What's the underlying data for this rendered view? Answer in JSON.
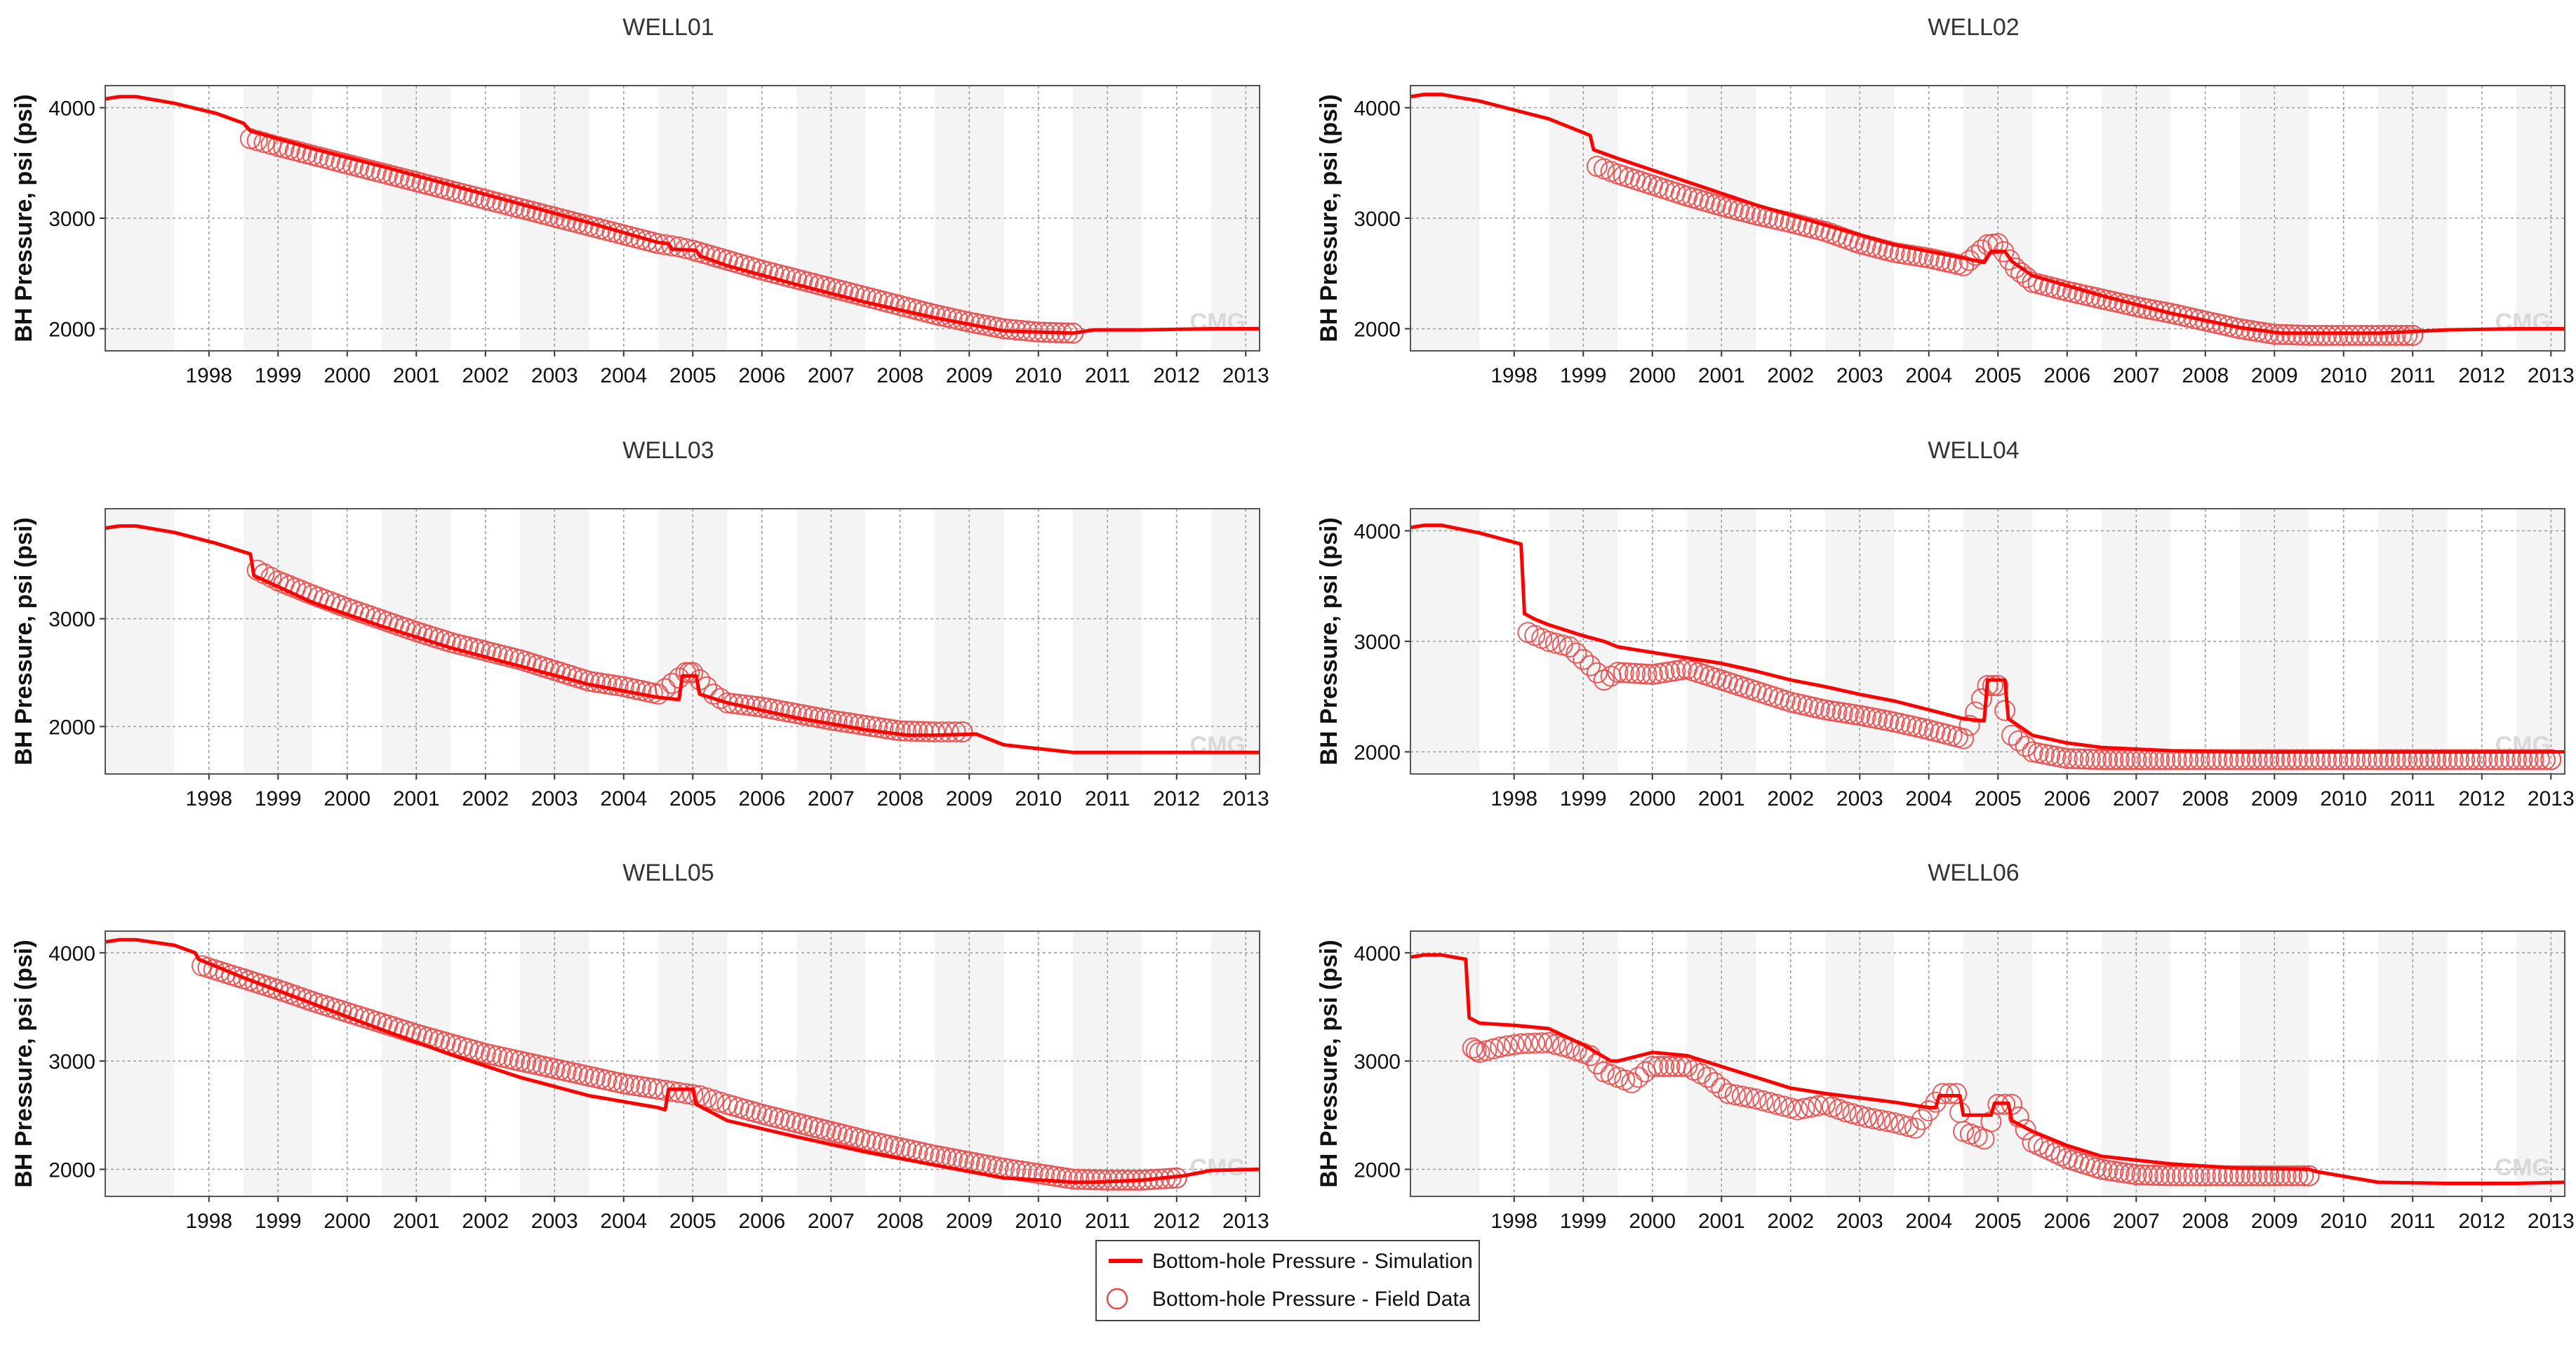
{
  "colors": {
    "simulation": "#ff0000",
    "field": "#e84a4a",
    "band": "#f4f4f4",
    "grid": "#9a9a9a",
    "frame": "#555555"
  },
  "legend": {
    "simulation_label": "Bottom-hole Pressure - Simulation",
    "field_label": "Bottom-hole Pressure - Field Data"
  },
  "watermark": "CMG",
  "chart_data": [
    {
      "type": "line",
      "title": "WELL01",
      "ylabel": "BH Pressure, psi (psi)",
      "xlim": [
        1997.0,
        2013.7
      ],
      "ylim": [
        1800,
        4200
      ],
      "x_ticks": [
        "1998",
        "1999",
        "2000",
        "2001",
        "2002",
        "2003",
        "2004",
        "2005",
        "2006",
        "2007",
        "2008",
        "2009",
        "2010",
        "2011",
        "2012",
        "2013"
      ],
      "y_ticks": [
        2000,
        3000,
        4000
      ],
      "series": [
        {
          "name": "Bottom-hole Pressure - Simulation",
          "x": [
            1997.0,
            1997.2,
            1997.45,
            1998.0,
            1998.6,
            1999.0,
            1999.1,
            2000.0,
            2001.0,
            2002.0,
            2003.0,
            2004.0,
            2005.0,
            2005.15,
            2005.2,
            2005.55,
            2005.6,
            2006.0,
            2007.0,
            2008.0,
            2009.0,
            2010.0,
            2011.0,
            2011.3,
            2012.0,
            2013.0,
            2013.7
          ],
          "y": [
            4080,
            4100,
            4100,
            4040,
            3950,
            3860,
            3790,
            3630,
            3470,
            3300,
            3130,
            2960,
            2780,
            2770,
            2720,
            2710,
            2660,
            2570,
            2400,
            2240,
            2100,
            1980,
            1960,
            1990,
            1990,
            2000,
            2000
          ]
        },
        {
          "name": "Bottom-hole Pressure - Field Data",
          "x": [
            1999.1,
            1999.5,
            2000.0,
            2000.5,
            2001.0,
            2001.5,
            2002.0,
            2002.5,
            2003.0,
            2003.5,
            2004.0,
            2004.5,
            2005.0,
            2005.3,
            2005.5,
            2006.0,
            2006.5,
            2007.0,
            2007.5,
            2008.0,
            2008.5,
            2009.0,
            2009.5,
            2010.0,
            2010.5,
            2011.0
          ],
          "y": [
            3720,
            3650,
            3570,
            3490,
            3410,
            3330,
            3250,
            3170,
            3090,
            3010,
            2930,
            2850,
            2770,
            2740,
            2710,
            2620,
            2530,
            2450,
            2370,
            2290,
            2210,
            2130,
            2060,
            2000,
            1970,
            1960
          ]
        }
      ]
    },
    {
      "type": "line",
      "title": "WELL02",
      "ylabel": "BH Pressure, psi (psi)",
      "xlim": [
        1997.0,
        2013.7
      ],
      "ylim": [
        1800,
        4200
      ],
      "x_ticks": [
        "1998",
        "1999",
        "2000",
        "2001",
        "2002",
        "2003",
        "2004",
        "2005",
        "2006",
        "2007",
        "2008",
        "2009",
        "2010",
        "2011",
        "2012",
        "2013"
      ],
      "y_ticks": [
        2000,
        3000,
        4000
      ],
      "series": [
        {
          "name": "Bottom-hole Pressure - Simulation",
          "x": [
            1997.0,
            1997.2,
            1997.45,
            1998.0,
            1999.0,
            1999.6,
            1999.65,
            2000.0,
            2001.0,
            2002.0,
            2003.0,
            2004.0,
            2005.0,
            2005.3,
            2005.4,
            2005.6,
            2005.7,
            2006.0,
            2007.0,
            2008.0,
            2009.0,
            2009.6,
            2010.0,
            2011.0,
            2012.0,
            2013.0,
            2013.7
          ],
          "y": [
            4100,
            4120,
            4120,
            4060,
            3900,
            3750,
            3620,
            3540,
            3330,
            3120,
            2940,
            2760,
            2640,
            2600,
            2700,
            2700,
            2610,
            2480,
            2300,
            2140,
            2010,
            1960,
            1960,
            1960,
            1990,
            2000,
            2000
          ]
        },
        {
          "name": "Bottom-hole Pressure - Field Data",
          "x": [
            1999.7,
            2000.0,
            2000.5,
            2001.0,
            2001.5,
            2002.0,
            2002.5,
            2003.0,
            2003.5,
            2004.0,
            2004.5,
            2005.0,
            2005.35,
            2005.5,
            2005.75,
            2006.0,
            2006.5,
            2007.0,
            2007.5,
            2008.0,
            2008.5,
            2009.0,
            2009.5,
            2010.0,
            2010.5,
            2011.0,
            2011.5
          ],
          "y": [
            3470,
            3400,
            3300,
            3200,
            3110,
            3030,
            2960,
            2880,
            2770,
            2690,
            2640,
            2570,
            2760,
            2770,
            2550,
            2420,
            2340,
            2270,
            2200,
            2140,
            2070,
            2000,
            1950,
            1940,
            1940,
            1940,
            1940
          ]
        }
      ]
    },
    {
      "type": "line",
      "title": "WELL03",
      "ylabel": "BH Pressure, psi (psi)",
      "xlim": [
        1997.0,
        2013.7
      ],
      "ylim": [
        1560,
        4020
      ],
      "x_ticks": [
        "1998",
        "1999",
        "2000",
        "2001",
        "2002",
        "2003",
        "2004",
        "2005",
        "2006",
        "2007",
        "2008",
        "2009",
        "2010",
        "2011",
        "2012",
        "2013"
      ],
      "y_ticks": [
        2000,
        3000
      ],
      "series": [
        {
          "name": "Bottom-hole Pressure - Simulation",
          "x": [
            1997.0,
            1997.2,
            1997.45,
            1998.0,
            1998.6,
            1999.1,
            1999.15,
            2000.0,
            2001.0,
            2002.0,
            2003.0,
            2004.0,
            2005.0,
            2005.3,
            2005.35,
            2005.55,
            2005.6,
            2006.0,
            2007.0,
            2008.0,
            2008.6,
            2009.0,
            2009.6,
            2010.0,
            2011.0,
            2012.0,
            2013.0,
            2013.7
          ],
          "y": [
            3840,
            3860,
            3860,
            3800,
            3700,
            3600,
            3400,
            3150,
            2930,
            2730,
            2560,
            2390,
            2270,
            2250,
            2470,
            2470,
            2300,
            2220,
            2080,
            1970,
            1920,
            1920,
            1930,
            1830,
            1760,
            1760,
            1760,
            1760
          ]
        },
        {
          "name": "Bottom-hole Pressure - Field Data",
          "x": [
            1999.2,
            1999.5,
            2000.0,
            2000.5,
            2001.0,
            2001.5,
            2002.0,
            2002.5,
            2003.0,
            2003.5,
            2004.0,
            2004.5,
            2005.0,
            2005.4,
            2005.5,
            2005.8,
            2006.0,
            2006.5,
            2007.0,
            2007.5,
            2008.0,
            2008.5,
            2009.0,
            2009.4
          ],
          "y": [
            3450,
            3350,
            3220,
            3100,
            2990,
            2880,
            2780,
            2700,
            2620,
            2520,
            2420,
            2370,
            2300,
            2500,
            2500,
            2300,
            2220,
            2180,
            2120,
            2060,
            2010,
            1960,
            1950,
            1950
          ]
        }
      ]
    },
    {
      "type": "line",
      "title": "WELL04",
      "ylabel": "BH Pressure, psi (psi)",
      "xlim": [
        1997.0,
        2013.7
      ],
      "ylim": [
        1800,
        4200
      ],
      "x_ticks": [
        "1998",
        "1999",
        "2000",
        "2001",
        "2002",
        "2003",
        "2004",
        "2005",
        "2006",
        "2007",
        "2008",
        "2009",
        "2010",
        "2011",
        "2012",
        "2013"
      ],
      "y_ticks": [
        2000,
        3000,
        4000
      ],
      "series": [
        {
          "name": "Bottom-hole Pressure - Simulation",
          "x": [
            1997.0,
            1997.2,
            1997.45,
            1998.0,
            1998.6,
            1998.65,
            1998.8,
            1999.0,
            1999.5,
            1999.8,
            2000.0,
            2000.5,
            2001.0,
            2001.5,
            2002.0,
            2002.5,
            2003.0,
            2003.5,
            2004.0,
            2004.5,
            2005.0,
            2005.3,
            2005.35,
            2005.6,
            2005.65,
            2006.0,
            2006.5,
            2007.0,
            2008.0,
            2009.0,
            2010.0,
            2011.0,
            2012.0,
            2013.0,
            2013.7
          ],
          "y": [
            4030,
            4050,
            4050,
            3980,
            3880,
            3250,
            3200,
            3150,
            3050,
            3000,
            2950,
            2900,
            2850,
            2800,
            2730,
            2650,
            2590,
            2520,
            2460,
            2380,
            2300,
            2280,
            2650,
            2650,
            2300,
            2150,
            2080,
            2040,
            2010,
            2000,
            2000,
            2000,
            2000,
            2000,
            2000
          ]
        },
        {
          "name": "Bottom-hole Pressure - Field Data",
          "x": [
            1998.7,
            1999.0,
            1999.3,
            1999.6,
            1999.8,
            2000.0,
            2000.5,
            2001.0,
            2001.5,
            2002.0,
            2002.5,
            2003.0,
            2003.5,
            2004.0,
            2004.5,
            2005.0,
            2005.35,
            2005.5,
            2005.7,
            2006.0,
            2006.5,
            2007.0,
            2007.5,
            2008.0,
            2008.5,
            2009.0,
            2009.5,
            2010.0,
            2010.5,
            2011.0,
            2011.5,
            2012.0,
            2012.5,
            2013.0,
            2013.5
          ],
          "y": [
            3080,
            3000,
            2950,
            2780,
            2650,
            2720,
            2700,
            2750,
            2650,
            2550,
            2450,
            2380,
            2330,
            2270,
            2200,
            2120,
            2600,
            2600,
            2150,
            2000,
            1940,
            1930,
            1930,
            1930,
            1930,
            1930,
            1930,
            1930,
            1930,
            1930,
            1930,
            1930,
            1930,
            1930,
            1930
          ]
        }
      ]
    },
    {
      "type": "line",
      "title": "WELL05",
      "ylabel": "BH Pressure, psi (psi)",
      "xlim": [
        1997.0,
        2013.7
      ],
      "ylim": [
        1750,
        4200
      ],
      "x_ticks": [
        "1998",
        "1999",
        "2000",
        "2001",
        "2002",
        "2003",
        "2004",
        "2005",
        "2006",
        "2007",
        "2008",
        "2009",
        "2010",
        "2011",
        "2012",
        "2013"
      ],
      "y_ticks": [
        2000,
        3000,
        4000
      ],
      "series": [
        {
          "name": "Bottom-hole Pressure - Simulation",
          "x": [
            1997.0,
            1997.2,
            1997.45,
            1998.0,
            1998.3,
            1998.35,
            1999.0,
            2000.0,
            2001.0,
            2002.0,
            2003.0,
            2004.0,
            2005.0,
            2005.1,
            2005.15,
            2005.5,
            2005.55,
            2006.0,
            2007.0,
            2008.0,
            2009.0,
            2010.0,
            2010.8,
            2011.0,
            2011.3,
            2012.0,
            2012.6,
            2013.0,
            2013.7
          ],
          "y": [
            4100,
            4120,
            4120,
            4070,
            4000,
            3940,
            3770,
            3530,
            3290,
            3060,
            2850,
            2680,
            2570,
            2550,
            2740,
            2740,
            2600,
            2450,
            2300,
            2160,
            2040,
            1920,
            1890,
            1880,
            1880,
            1900,
            1940,
            1990,
            2000
          ]
        },
        {
          "name": "Bottom-hole Pressure - Field Data",
          "x": [
            1998.4,
            1999.0,
            1999.5,
            2000.0,
            2000.5,
            2001.0,
            2001.5,
            2002.0,
            2002.5,
            2003.0,
            2003.5,
            2004.0,
            2004.5,
            2005.0,
            2005.3,
            2005.6,
            2006.0,
            2006.5,
            2007.0,
            2007.5,
            2008.0,
            2008.5,
            2009.0,
            2009.5,
            2010.0,
            2010.5,
            2011.0,
            2011.5,
            2012.0,
            2012.5
          ],
          "y": [
            3880,
            3760,
            3660,
            3550,
            3450,
            3350,
            3250,
            3160,
            3070,
            3000,
            2930,
            2860,
            2790,
            2740,
            2710,
            2680,
            2600,
            2510,
            2430,
            2350,
            2270,
            2200,
            2130,
            2070,
            2010,
            1960,
            1910,
            1900,
            1900,
            1920
          ]
        }
      ]
    },
    {
      "type": "line",
      "title": "WELL06",
      "ylabel": "BH Pressure, psi (psi)",
      "xlim": [
        1997.0,
        2013.7
      ],
      "ylim": [
        1750,
        4200
      ],
      "x_ticks": [
        "1998",
        "1999",
        "2000",
        "2001",
        "2002",
        "2003",
        "2004",
        "2005",
        "2006",
        "2007",
        "2008",
        "2009",
        "2010",
        "2011",
        "2012",
        "2013"
      ],
      "y_ticks": [
        2000,
        3000,
        4000
      ],
      "series": [
        {
          "name": "Bottom-hole Pressure - Simulation",
          "x": [
            1997.0,
            1997.2,
            1997.45,
            1997.8,
            1997.85,
            1998.0,
            1998.5,
            1999.0,
            1999.5,
            1999.9,
            2000.0,
            2000.5,
            2001.0,
            2001.5,
            2002.0,
            2002.5,
            2003.0,
            2003.5,
            2004.0,
            2004.5,
            2004.6,
            2004.65,
            2004.95,
            2005.0,
            2005.4,
            2005.45,
            2005.65,
            2005.7,
            2006.0,
            2006.5,
            2007.0,
            2008.0,
            2009.0,
            2010.0,
            2010.1,
            2011.0,
            2012.0,
            2013.0,
            2013.7
          ],
          "y": [
            3960,
            3980,
            3980,
            3940,
            3400,
            3350,
            3330,
            3300,
            3150,
            3000,
            3000,
            3080,
            3050,
            2950,
            2850,
            2750,
            2700,
            2660,
            2620,
            2570,
            2570,
            2680,
            2680,
            2500,
            2500,
            2610,
            2610,
            2450,
            2350,
            2220,
            2120,
            2050,
            2010,
            2000,
            1980,
            1880,
            1870,
            1870,
            1880
          ]
        },
        {
          "name": "Bottom-hole Pressure - Field Data",
          "x": [
            1997.9,
            1998.0,
            1998.3,
            1998.6,
            1999.0,
            1999.3,
            1999.6,
            1999.8,
            2000.0,
            2000.2,
            2000.5,
            2001.0,
            2001.3,
            2001.6,
            2002.0,
            2002.3,
            2002.6,
            2003.0,
            2003.3,
            2003.6,
            2004.0,
            2004.3,
            2004.7,
            2004.9,
            2005.0,
            2005.3,
            2005.5,
            2005.7,
            2006.0,
            2006.5,
            2007.0,
            2007.5,
            2008.0,
            2008.5,
            2009.0,
            2009.5,
            2010.0
          ],
          "y": [
            3120,
            3080,
            3130,
            3160,
            3170,
            3120,
            3050,
            2900,
            2850,
            2800,
            2950,
            2950,
            2850,
            2700,
            2650,
            2600,
            2550,
            2600,
            2530,
            2480,
            2430,
            2380,
            2700,
            2700,
            2350,
            2280,
            2600,
            2600,
            2250,
            2100,
            2000,
            1950,
            1940,
            1940,
            1940,
            1940,
            1940
          ]
        }
      ]
    }
  ]
}
